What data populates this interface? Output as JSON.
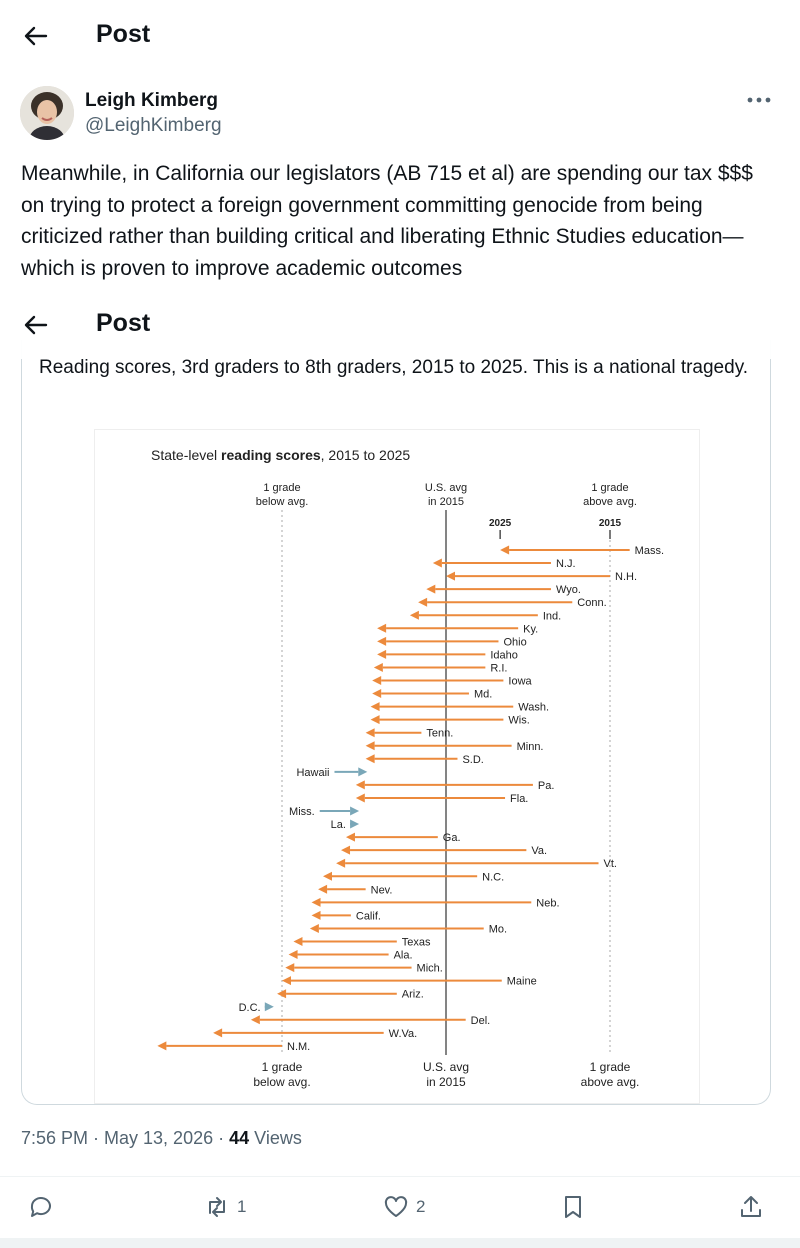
{
  "header": {
    "title": "Post"
  },
  "overlay_header": {
    "title": "Post"
  },
  "author": {
    "name": "Leigh Kimberg",
    "handle": "@LeighKimberg"
  },
  "post": {
    "text": "Meanwhile, in California our legislators (AB 715 et al) are spending our tax $$$ on trying to protect a foreign government committing genocide from being criticized rather than building critical and liberating Ethnic Studies education—which is proven to improve academic outcomes"
  },
  "quote": {
    "text": "Reading scores, 3rd graders to 8th graders, 2015 to 2025. This is a national tragedy."
  },
  "chart_data": {
    "type": "arrow-dot",
    "title_prefix": "State-level ",
    "title_bold": "reading scores",
    "title_suffix": ", 2015 to 2025",
    "axis_labels": {
      "left": [
        "1 grade",
        "below avg."
      ],
      "center": [
        "U.S. avg",
        "in 2015"
      ],
      "right": [
        "1 grade",
        "above avg."
      ]
    },
    "year_labels": {
      "start": "2015",
      "end": "2025"
    },
    "xlim": [
      -1.25,
      1.25
    ],
    "units": "grade levels relative to U.S. avg in 2015",
    "colors": {
      "decline": "#ec8a3c",
      "improve": "#7aa7b8"
    },
    "states": [
      {
        "name": "Mass.",
        "v2015": 1.12,
        "v2025": 0.33
      },
      {
        "name": "N.J.",
        "v2015": 0.64,
        "v2025": -0.08
      },
      {
        "name": "N.H.",
        "v2015": 1.0,
        "v2025": 0.0
      },
      {
        "name": "Wyo.",
        "v2015": 0.64,
        "v2025": -0.12
      },
      {
        "name": "Conn.",
        "v2015": 0.77,
        "v2025": -0.17
      },
      {
        "name": "Ind.",
        "v2015": 0.56,
        "v2025": -0.22
      },
      {
        "name": "Ky.",
        "v2015": 0.44,
        "v2025": -0.42
      },
      {
        "name": "Ohio",
        "v2015": 0.32,
        "v2025": -0.42
      },
      {
        "name": "Idaho",
        "v2015": 0.24,
        "v2025": -0.42
      },
      {
        "name": "R.I.",
        "v2015": 0.24,
        "v2025": -0.44
      },
      {
        "name": "Iowa",
        "v2015": 0.35,
        "v2025": -0.45
      },
      {
        "name": "Md.",
        "v2015": 0.14,
        "v2025": -0.45
      },
      {
        "name": "Wash.",
        "v2015": 0.41,
        "v2025": -0.46
      },
      {
        "name": "Wis.",
        "v2015": 0.35,
        "v2025": -0.46
      },
      {
        "name": "Tenn.",
        "v2015": -0.15,
        "v2025": -0.49
      },
      {
        "name": "Minn.",
        "v2015": 0.4,
        "v2025": -0.49
      },
      {
        "name": "S.D.",
        "v2015": 0.07,
        "v2025": -0.49
      },
      {
        "name": "Hawaii",
        "v2015": -0.68,
        "v2025": -0.48
      },
      {
        "name": "Pa.",
        "v2015": 0.53,
        "v2025": -0.55
      },
      {
        "name": "Fla.",
        "v2015": 0.36,
        "v2025": -0.55
      },
      {
        "name": "Miss.",
        "v2015": -0.77,
        "v2025": -0.53
      },
      {
        "name": "La.",
        "v2015": -0.58,
        "v2025": -0.53
      },
      {
        "name": "Ga.",
        "v2015": -0.05,
        "v2025": -0.61
      },
      {
        "name": "Va.",
        "v2015": 0.49,
        "v2025": -0.64
      },
      {
        "name": "Vt.",
        "v2015": 0.93,
        "v2025": -0.67
      },
      {
        "name": "N.C.",
        "v2015": 0.19,
        "v2025": -0.75
      },
      {
        "name": "Nev.",
        "v2015": -0.49,
        "v2025": -0.78
      },
      {
        "name": "Neb.",
        "v2015": 0.52,
        "v2025": -0.82
      },
      {
        "name": "Calif.",
        "v2015": -0.58,
        "v2025": -0.82
      },
      {
        "name": "Mo.",
        "v2015": 0.23,
        "v2025": -0.83
      },
      {
        "name": "Texas",
        "v2015": -0.3,
        "v2025": -0.93
      },
      {
        "name": "Ala.",
        "v2015": -0.35,
        "v2025": -0.96
      },
      {
        "name": "Mich.",
        "v2015": -0.21,
        "v2025": -0.98
      },
      {
        "name": "Maine",
        "v2015": 0.34,
        "v2025": -1.0
      },
      {
        "name": "Ariz.",
        "v2015": -0.3,
        "v2025": -1.03
      },
      {
        "name": "D.C.",
        "v2015": -1.1,
        "v2025": -1.05
      },
      {
        "name": "Del.",
        "v2015": 0.12,
        "v2025": -1.19
      },
      {
        "name": "W.Va.",
        "v2015": -0.38,
        "v2025": -1.42
      },
      {
        "name": "N.M.",
        "v2015": -1.0,
        "v2025": -1.76
      }
    ]
  },
  "meta": {
    "time": "7:56 PM · May 13, 2026 · ",
    "views_count": "44",
    "views_label": " Views"
  },
  "actions": {
    "reply": "",
    "retweet": "1",
    "like": "2",
    "bookmark": "",
    "share": ""
  },
  "icons": {
    "back": "back-arrow-icon",
    "more": "more-icon",
    "reply": "reply-icon",
    "retweet": "retweet-icon",
    "like": "heart-icon",
    "bookmark": "bookmark-icon",
    "share": "share-icon"
  }
}
